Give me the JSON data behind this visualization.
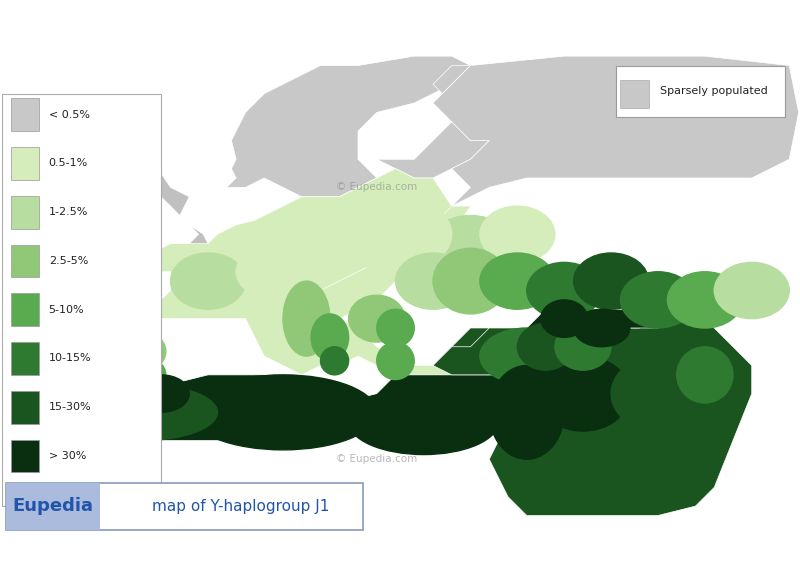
{
  "title": "map of Y-haplogroup J1",
  "brand": "Eupedia",
  "copyright": "© Eupedia.com",
  "background_color": "#ffffff",
  "legend_items": [
    {
      "label": "< 0.5%",
      "color": "#c8c8c8"
    },
    {
      "label": "0.5-1%",
      "color": "#d4edba"
    },
    {
      "label": "1-2.5%",
      "color": "#b8dda0"
    },
    {
      "label": "2.5-5%",
      "color": "#90c878"
    },
    {
      "label": "5-10%",
      "color": "#5aaa50"
    },
    {
      "label": "10-15%",
      "color": "#2d7a30"
    },
    {
      "label": "15-30%",
      "color": "#1a5520"
    },
    {
      "label": "> 30%",
      "color": "#0a2f10"
    }
  ],
  "sparsely_color": "#c8c8c8",
  "sparsely_label": "Sparsely populated",
  "border_color": "#ffffff",
  "ocean_color": "#ffffff",
  "eupedia_text_color": "#2255aa",
  "eupedia_bg": "#aabbdd",
  "title_color": "#2255aa",
  "watermark_color": "#888888",
  "colors": {
    "sparse": "#c8c8c8",
    "v_low": "#d4edba",
    "low": "#b8dda0",
    "mod": "#90c878",
    "med": "#5aaa50",
    "high": "#2d7a30",
    "v_high": "#1a5520",
    "extreme": "#0a2f10",
    "none": "#c0c0c0"
  }
}
